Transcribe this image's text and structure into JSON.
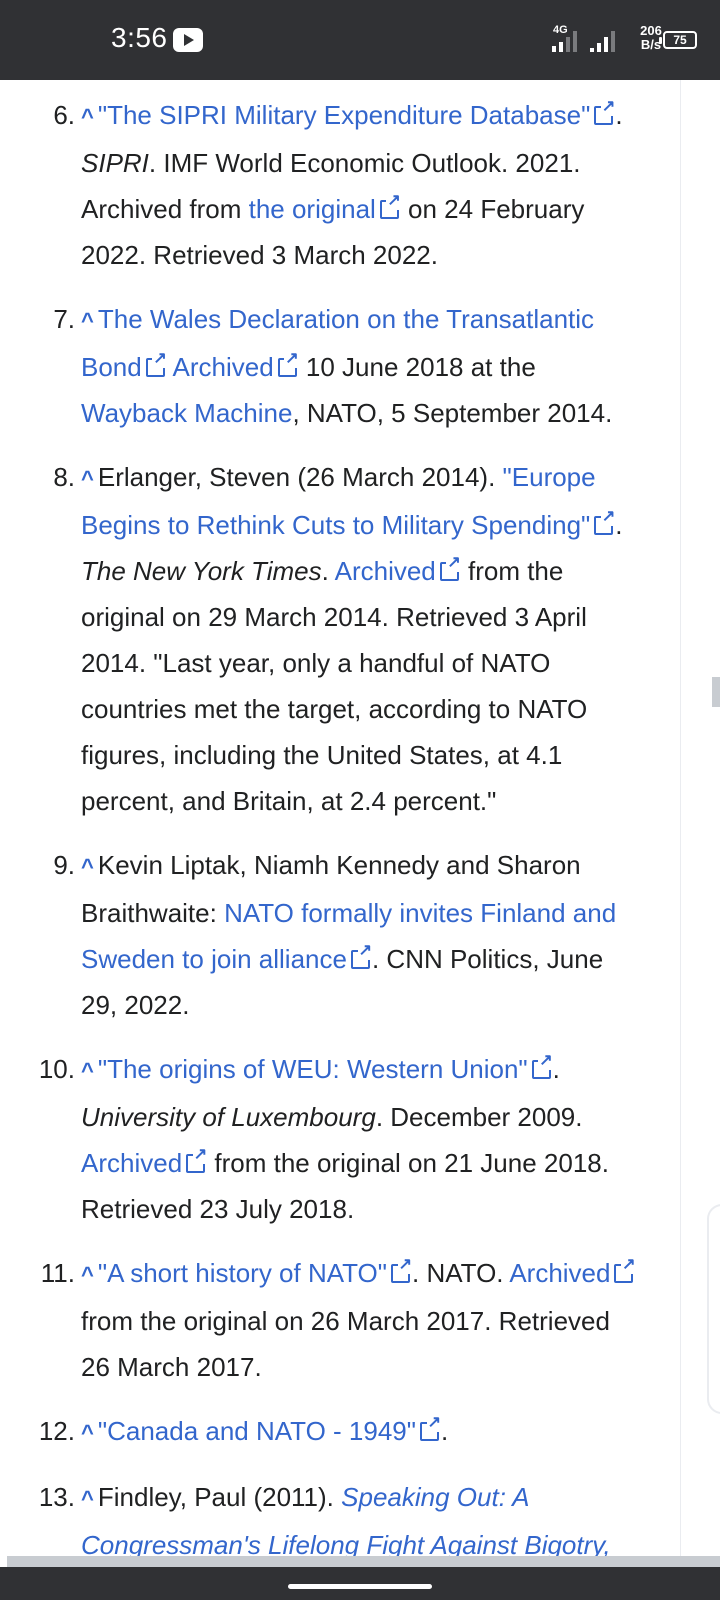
{
  "status_bar": {
    "time": "3:56",
    "network_type": "4G",
    "speed_value": "206",
    "speed_unit": "B/s",
    "battery": "75"
  },
  "references": [
    {
      "num": "6.",
      "parts": [
        {
          "t": "\"The SIPRI Military Expenditure Database\"",
          "s": "link",
          "ext": true
        },
        {
          "t": ". "
        },
        {
          "t": "SIPRI",
          "s": "italic"
        },
        {
          "t": ". IMF World Economic Outlook. 2021. Archived from "
        },
        {
          "t": "the original",
          "s": "link",
          "ext": true
        },
        {
          "t": " on 24 February 2022. Retrieved 3 March 2022."
        }
      ]
    },
    {
      "num": "7.",
      "parts": [
        {
          "t": "The Wales Declaration on the Transatlantic Bond",
          "s": "link",
          "ext": true
        },
        {
          "t": " "
        },
        {
          "t": "Archived",
          "s": "link",
          "ext": true
        },
        {
          "t": " 10 June 2018 at the "
        },
        {
          "t": "Wayback Machine",
          "s": "link"
        },
        {
          "t": ", NATO, 5 September 2014."
        }
      ]
    },
    {
      "num": "8.",
      "parts": [
        {
          "t": "Erlanger, Steven (26 March 2014). "
        },
        {
          "t": "\"Europe Begins to Rethink Cuts to Military Spending\"",
          "s": "link",
          "ext": true
        },
        {
          "t": ". "
        },
        {
          "t": "The New York Times",
          "s": "italic"
        },
        {
          "t": ". "
        },
        {
          "t": "Archived",
          "s": "link",
          "ext": true
        },
        {
          "t": " from the original on 29 March 2014. Retrieved 3 April 2014. \"Last year, only a handful of NATO countries met the target, according to NATO figures, including the United States, at 4.1 percent, and Britain, at 2.4 percent.\""
        }
      ]
    },
    {
      "num": "9.",
      "parts": [
        {
          "t": "Kevin Liptak, Niamh Kennedy and Sharon Braithwaite: "
        },
        {
          "t": "NATO formally invites Finland and Sweden to join alliance",
          "s": "link",
          "ext": true
        },
        {
          "t": ". CNN Politics, June 29, 2022."
        }
      ]
    },
    {
      "num": "10.",
      "parts": [
        {
          "t": "\"The origins of WEU: Western Union\"",
          "s": "link",
          "ext": true
        },
        {
          "t": ". "
        },
        {
          "t": "University of Luxembourg",
          "s": "italic"
        },
        {
          "t": ". December 2009. "
        },
        {
          "t": "Archived",
          "s": "link",
          "ext": true
        },
        {
          "t": " from the original on 21 June 2018. Retrieved 23 July 2018."
        }
      ]
    },
    {
      "num": "11.",
      "parts": [
        {
          "t": "\"A short history of NATO\"",
          "s": "link",
          "ext": true
        },
        {
          "t": ". NATO. "
        },
        {
          "t": "Archived",
          "s": "link",
          "ext": true
        },
        {
          "t": " from the original on 26 March 2017. Retrieved 26 March 2017."
        }
      ]
    },
    {
      "num": "12.",
      "parts": [
        {
          "t": "\"Canada and NATO - 1949\"",
          "s": "link",
          "ext": true
        },
        {
          "t": "."
        }
      ]
    },
    {
      "num": "13.",
      "parts": [
        {
          "t": "Findley, Paul (2011). "
        },
        {
          "t": "Speaking Out: A Congressman's Lifelong Fight Against Bigotry, Famine, and War - Paul Findley - Google",
          "s": "link-italic"
        }
      ]
    }
  ],
  "backlink_glyph": "^",
  "colors": {
    "link": "#3366cc",
    "text": "#202122",
    "status_bar": "#303134"
  }
}
